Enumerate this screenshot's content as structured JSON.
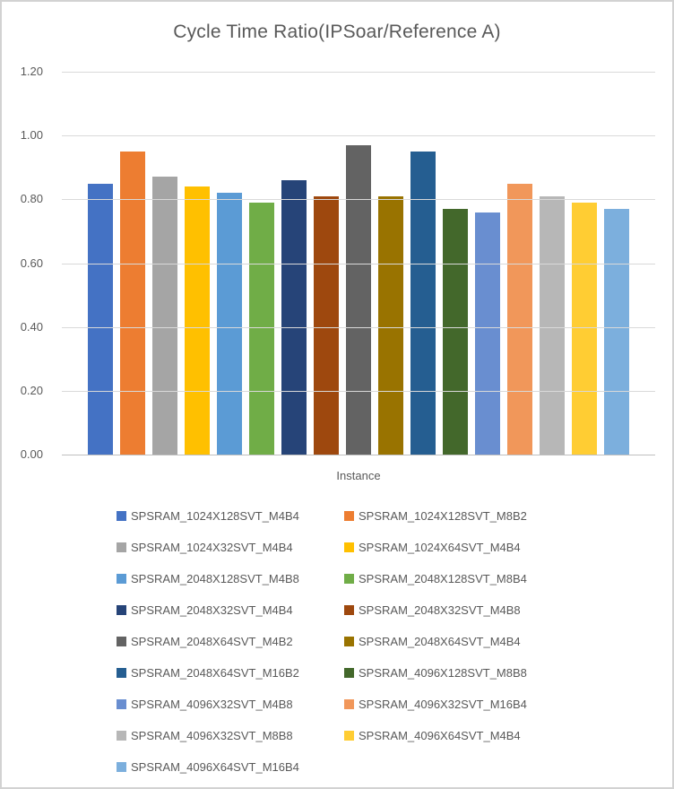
{
  "chart_data": {
    "type": "bar",
    "title": "Cycle Time Ratio(IPSoar/Reference A)",
    "xlabel": "Instance",
    "ylabel": "",
    "ylim": [
      0,
      1.2
    ],
    "yticks": [
      "1.20",
      "1.00",
      "0.80",
      "0.60",
      "0.40",
      "0.20",
      "0.00"
    ],
    "grid": true,
    "legend_position": "bottom",
    "series": [
      {
        "name": "SPSRAM_1024X128SVT_M4B4",
        "value": 0.85,
        "color": "#4472C4"
      },
      {
        "name": "SPSRAM_1024X128SVT_M8B2",
        "value": 0.95,
        "color": "#ED7D31"
      },
      {
        "name": "SPSRAM_1024X32SVT_M4B4",
        "value": 0.87,
        "color": "#A5A5A5"
      },
      {
        "name": "SPSRAM_1024X64SVT_M4B4",
        "value": 0.84,
        "color": "#FFC000"
      },
      {
        "name": "SPSRAM_2048X128SVT_M4B8",
        "value": 0.82,
        "color": "#5B9BD5"
      },
      {
        "name": "SPSRAM_2048X128SVT_M8B4",
        "value": 0.79,
        "color": "#70AD47"
      },
      {
        "name": "SPSRAM_2048X32SVT_M4B4",
        "value": 0.86,
        "color": "#264478"
      },
      {
        "name": "SPSRAM_2048X32SVT_M4B8",
        "value": 0.81,
        "color": "#9E480E"
      },
      {
        "name": "SPSRAM_2048X64SVT_M4B2",
        "value": 0.97,
        "color": "#636363"
      },
      {
        "name": "SPSRAM_2048X64SVT_M4B4",
        "value": 0.81,
        "color": "#997300"
      },
      {
        "name": "SPSRAM_2048X64SVT_M16B2",
        "value": 0.95,
        "color": "#255E91"
      },
      {
        "name": "SPSRAM_4096X128SVT_M8B8",
        "value": 0.77,
        "color": "#43682B"
      },
      {
        "name": "SPSRAM_4096X32SVT_M4B8",
        "value": 0.76,
        "color": "#698ED0"
      },
      {
        "name": "SPSRAM_4096X32SVT_M16B4",
        "value": 0.85,
        "color": "#F1975A"
      },
      {
        "name": "SPSRAM_4096X32SVT_M8B8",
        "value": 0.81,
        "color": "#B7B7B7"
      },
      {
        "name": "SPSRAM_4096X64SVT_M4B4",
        "value": 0.79,
        "color": "#FFCD33"
      },
      {
        "name": "SPSRAM_4096X64SVT_M16B4",
        "value": 0.77,
        "color": "#7CAFDD"
      }
    ]
  },
  "colors": {
    "text": "#595959",
    "gridline": "#D9D9D9",
    "axis_line": "#BFBFBF",
    "frame_border": "#D2D2D2",
    "background": "#FFFFFF"
  }
}
